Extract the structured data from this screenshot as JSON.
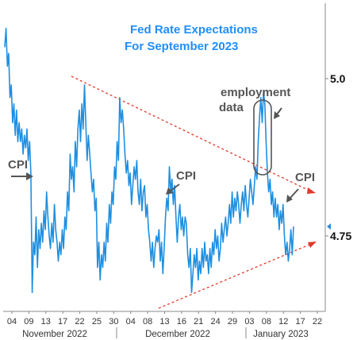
{
  "chart_data": {
    "type": "line",
    "title_lines": [
      "Fed Rate Expectations",
      "For September 2023"
    ],
    "title_color": "#1f8fff",
    "line_color": "#1f8fe0",
    "trend_color": "#e03a2a",
    "x_ticks": [
      "04",
      "09",
      "13",
      "17",
      "22",
      "25",
      "30",
      "04",
      "08",
      "13",
      "16",
      "21",
      "24",
      "29",
      "03",
      "08",
      "12",
      "17",
      "22"
    ],
    "months": [
      "November 2022",
      "December 2022",
      "January 2023"
    ],
    "y_ticks": [
      {
        "label": "5.0",
        "value": 5.0
      },
      {
        "label": "4.75",
        "value": 4.75
      }
    ],
    "ylim": [
      4.63,
      5.12
    ],
    "current_marker_value": 4.765,
    "annotations": [
      "CPI",
      "CPI",
      "CPI",
      "employment",
      "data"
    ],
    "series": [
      {
        "values": [
          5.05,
          5.08,
          5.02,
          5.04,
          4.97,
          4.99,
          4.93,
          4.96,
          4.91,
          4.95,
          4.9,
          4.93,
          4.9,
          4.92,
          4.88,
          4.91,
          4.89,
          4.92,
          4.87,
          4.9,
          4.85,
          4.66,
          4.74,
          4.72,
          4.78,
          4.7,
          4.76,
          4.73,
          4.77,
          4.74,
          4.79,
          4.76,
          4.82,
          4.78,
          4.75,
          4.73,
          4.77,
          4.74,
          4.8,
          4.76,
          4.74,
          4.71,
          4.74,
          4.72,
          4.76,
          4.73,
          4.78,
          4.76,
          4.82,
          4.79,
          4.88,
          4.84,
          4.86,
          4.82,
          4.9,
          4.86,
          4.92,
          4.95,
          4.9,
          4.96,
          4.92,
          4.99,
          4.93,
          4.87,
          4.91,
          4.88,
          4.85,
          4.82,
          4.84,
          4.79,
          4.81,
          4.7,
          4.74,
          4.68,
          4.72,
          4.7,
          4.74,
          4.71,
          4.77,
          4.74,
          4.8,
          4.77,
          4.82,
          4.8,
          4.86,
          4.84,
          4.9,
          4.87,
          4.97,
          4.93,
          4.95,
          4.92,
          4.88,
          4.85,
          4.87,
          4.83,
          4.85,
          4.8,
          4.83,
          4.86,
          4.84,
          4.87,
          4.82,
          4.8,
          4.84,
          4.79,
          4.82,
          4.83,
          4.78,
          4.8,
          4.76,
          4.74,
          4.71,
          4.74,
          4.7,
          4.73,
          4.75,
          4.74,
          4.76,
          4.71,
          4.74,
          4.69,
          4.73,
          4.78,
          4.81,
          4.79,
          4.86,
          4.82,
          4.84,
          4.8,
          4.83,
          4.78,
          4.74,
          4.78,
          4.8,
          4.76,
          4.78,
          4.75,
          4.78,
          4.77,
          4.72,
          4.7,
          4.73,
          4.66,
          4.69,
          4.72,
          4.7,
          4.73,
          4.68,
          4.71,
          4.69,
          4.73,
          4.7,
          4.74,
          4.71,
          4.72,
          4.69,
          4.73,
          4.7,
          4.74,
          4.72,
          4.76,
          4.73,
          4.75,
          4.71,
          4.73,
          4.77,
          4.74,
          4.76,
          4.78,
          4.75,
          4.77,
          4.8,
          4.77,
          4.82,
          4.78,
          4.81,
          4.79,
          4.82,
          4.8,
          4.77,
          4.8,
          4.82,
          4.79,
          4.83,
          4.8,
          4.78,
          4.81,
          4.84,
          4.82,
          4.8,
          4.83,
          4.86,
          4.84,
          4.9,
          4.94,
          4.97,
          4.93,
          4.98,
          4.96,
          4.9,
          4.85,
          4.82,
          4.84,
          4.8,
          4.82,
          4.78,
          4.81,
          4.78,
          4.8,
          4.76,
          4.79,
          4.77,
          4.8,
          4.75,
          4.72,
          4.74,
          4.71,
          4.73,
          4.76,
          4.72,
          4.765
        ]
      }
    ],
    "legend": "none",
    "grid": false
  }
}
